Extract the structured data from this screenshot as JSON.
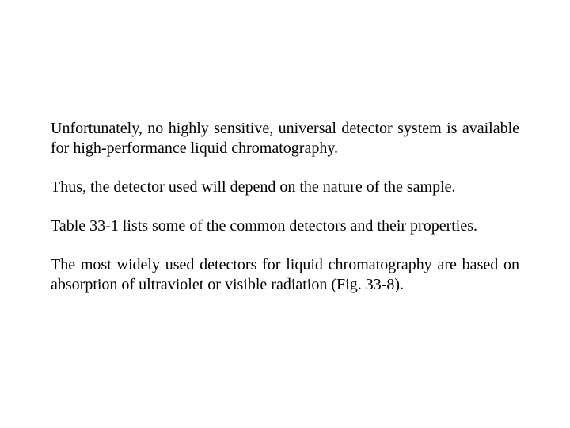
{
  "text_color": "#000000",
  "background_color": "#ffffff",
  "font_family": "Times New Roman",
  "font_size_pt": 20,
  "paragraphs": {
    "p1": "Unfortunately, no highly sensitive, universal detector system is available for high-performance liquid chromatography.",
    "p2": "Thus, the detector used will depend on the nature of the sample.",
    "p3": "Table 33-1 lists some of the common detectors and their properties.",
    "p4": "The most widely used detectors for liquid chromatography are based on absorption of ultraviolet or visible radiation (Fig. 33-8)."
  }
}
